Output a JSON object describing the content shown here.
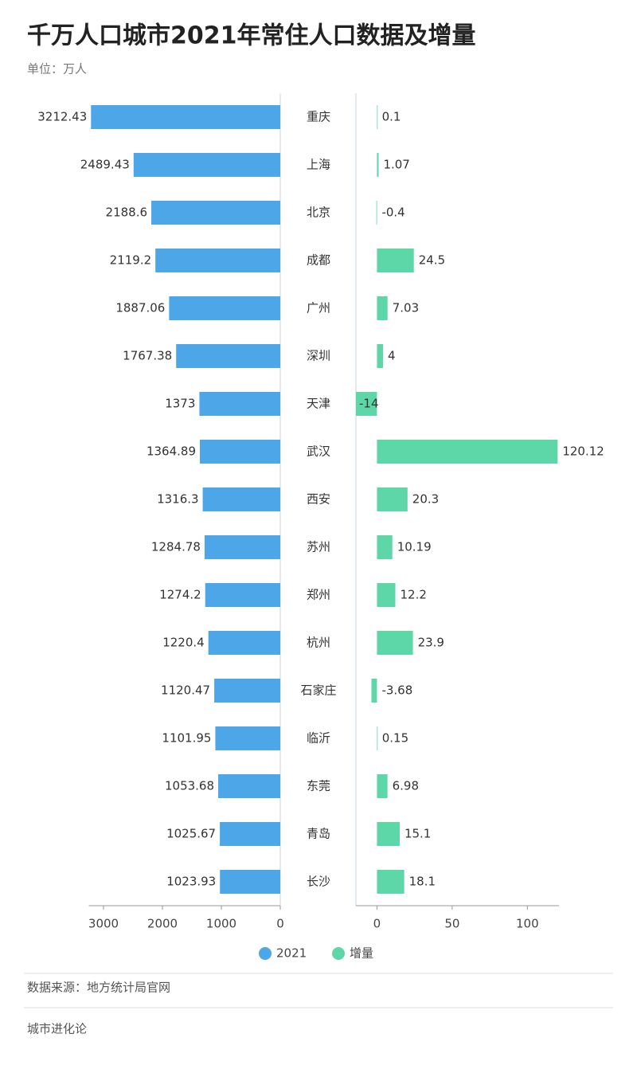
{
  "chart_data": {
    "type": "bar",
    "title": "千万人口城市2021年常住人口数据及增量",
    "subtitle": "单位：万人",
    "source": "数据来源：地方统计局官网",
    "footer": "城市进化论",
    "categories": [
      "重庆",
      "上海",
      "北京",
      "成都",
      "广州",
      "深圳",
      "天津",
      "武汉",
      "西安",
      "苏州",
      "郑州",
      "杭州",
      "石家庄",
      "临沂",
      "东莞",
      "青岛",
      "长沙"
    ],
    "series": [
      {
        "name": "2021",
        "color": "#4da6e8",
        "values": [
          3212.43,
          2489.43,
          2188.6,
          2119.2,
          1887.06,
          1767.38,
          1373,
          1364.89,
          1316.3,
          1284.78,
          1274.2,
          1220.4,
          1120.47,
          1101.95,
          1053.68,
          1025.67,
          1023.93
        ],
        "xlim": [
          0,
          3250
        ],
        "xticks": [
          0,
          1000,
          2000,
          3000
        ]
      },
      {
        "name": "增量",
        "color": "#5dd6a8",
        "values": [
          0.1,
          1.07,
          -0.4,
          24.5,
          7.03,
          4,
          -14,
          120.12,
          20.3,
          10.19,
          12.2,
          23.9,
          -3.68,
          0.15,
          6.98,
          15.1,
          18.1
        ],
        "xlim": [
          -14,
          121
        ],
        "xticks": [
          0,
          50,
          100
        ]
      }
    ]
  }
}
